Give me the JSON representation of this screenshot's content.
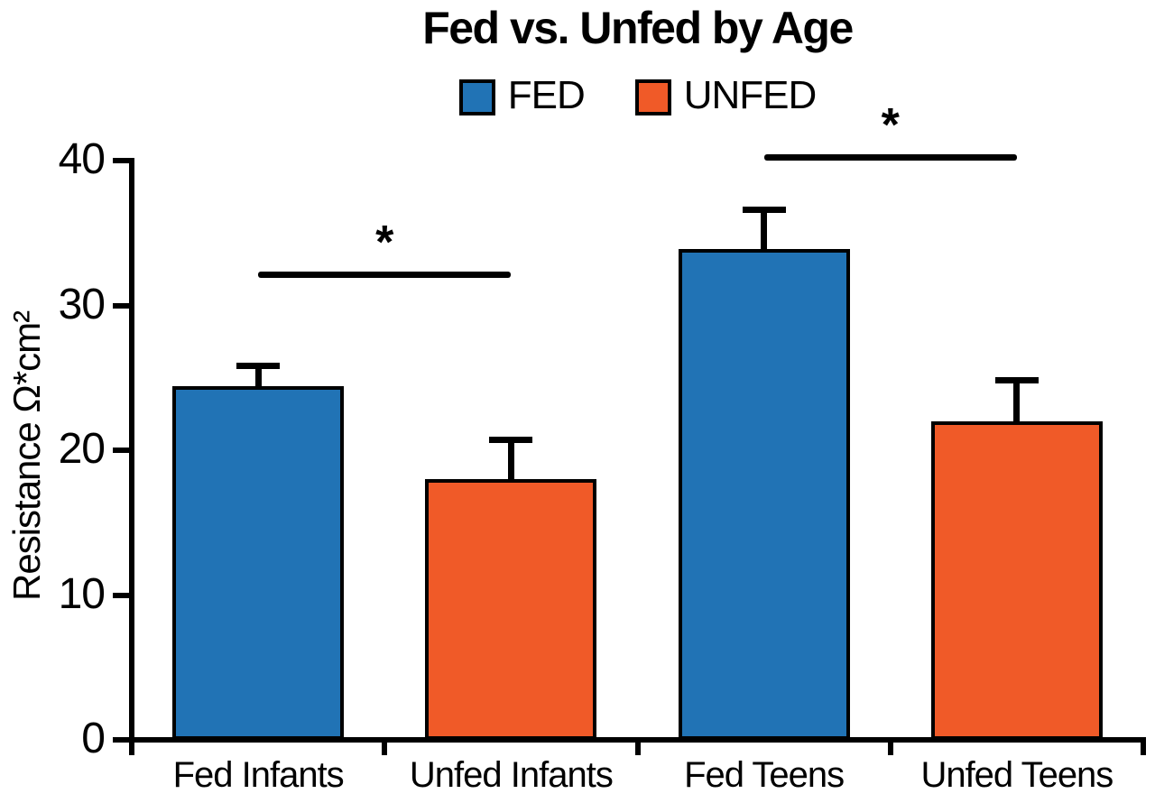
{
  "figure": {
    "background": "#ffffff",
    "text_color": "#000000"
  },
  "chart_data": {
    "type": "bar",
    "title": "Fed vs. Unfed by Age",
    "xlabel": "",
    "ylabel": "Resistance Ω*cm²",
    "ylim": [
      0,
      40
    ],
    "yticks": [
      "0",
      "10",
      "20",
      "30",
      "40"
    ],
    "grid": false,
    "legend_position": "top-center",
    "categories": [
      "Fed Infants",
      "Unfed Infants",
      "Fed Teens",
      "Unfed Teens"
    ],
    "series_of_bar": [
      "FED",
      "UNFED",
      "FED",
      "UNFED"
    ],
    "values": [
      24.4,
      18.0,
      33.9,
      22.0
    ],
    "errors_plus": [
      1.4,
      2.7,
      2.7,
      2.8
    ],
    "bar_colors": [
      "#2173B5",
      "#F05A28",
      "#2173B5",
      "#F05A28"
    ],
    "axis_color": "#000000",
    "legend": [
      {
        "label": "FED",
        "color": "#2173B5"
      },
      {
        "label": "UNFED",
        "color": "#F05A28"
      }
    ],
    "significance": [
      {
        "between": [
          0,
          1
        ],
        "y": 32.1,
        "label": "*"
      },
      {
        "between": [
          2,
          3
        ],
        "y": 40.2,
        "label": "*"
      }
    ]
  }
}
